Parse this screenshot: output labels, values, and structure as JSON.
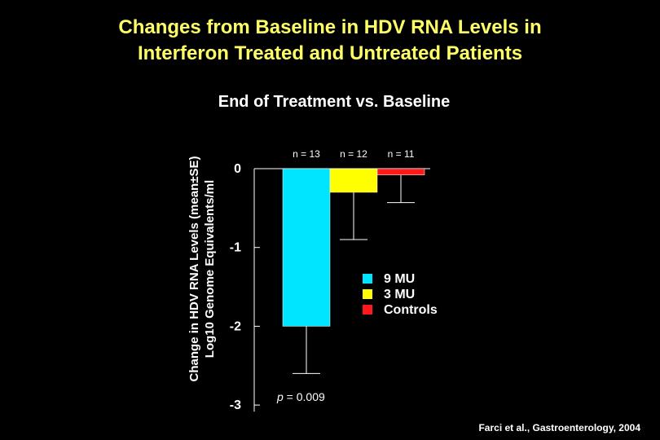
{
  "title_line1": "Changes from Baseline in HDV RNA Levels in",
  "title_line2": "Interferon Treated and Untreated Patients",
  "citation": "Farci et al., Gastroenterology, 2004",
  "colors": {
    "background": "#000000",
    "title": "#ffff66",
    "text": "#ffffff"
  },
  "chart_data": {
    "type": "bar",
    "title": "End of Treatment vs. Baseline",
    "ylabel_line1": "Change in HDV RNA Levels (mean±SE)",
    "ylabel_line2": "Log10 Genome Equivalents/ml",
    "ylim": [
      -3,
      0
    ],
    "yticks": [
      "0",
      "-1",
      "-2",
      "-3"
    ],
    "grid": false,
    "legend_position": "lower-right",
    "annotation": "p = 0.009",
    "series": [
      {
        "name": "9 MU",
        "value": -2.0,
        "se": 0.6,
        "n_label": "n = 13",
        "color": "#00e5ff"
      },
      {
        "name": "3 MU",
        "value": -0.3,
        "se": 0.6,
        "n_label": "n = 12",
        "color": "#ffff00"
      },
      {
        "name": "Controls",
        "value": -0.08,
        "se": 0.35,
        "n_label": "n = 11",
        "color": "#ff1a1a"
      }
    ]
  }
}
